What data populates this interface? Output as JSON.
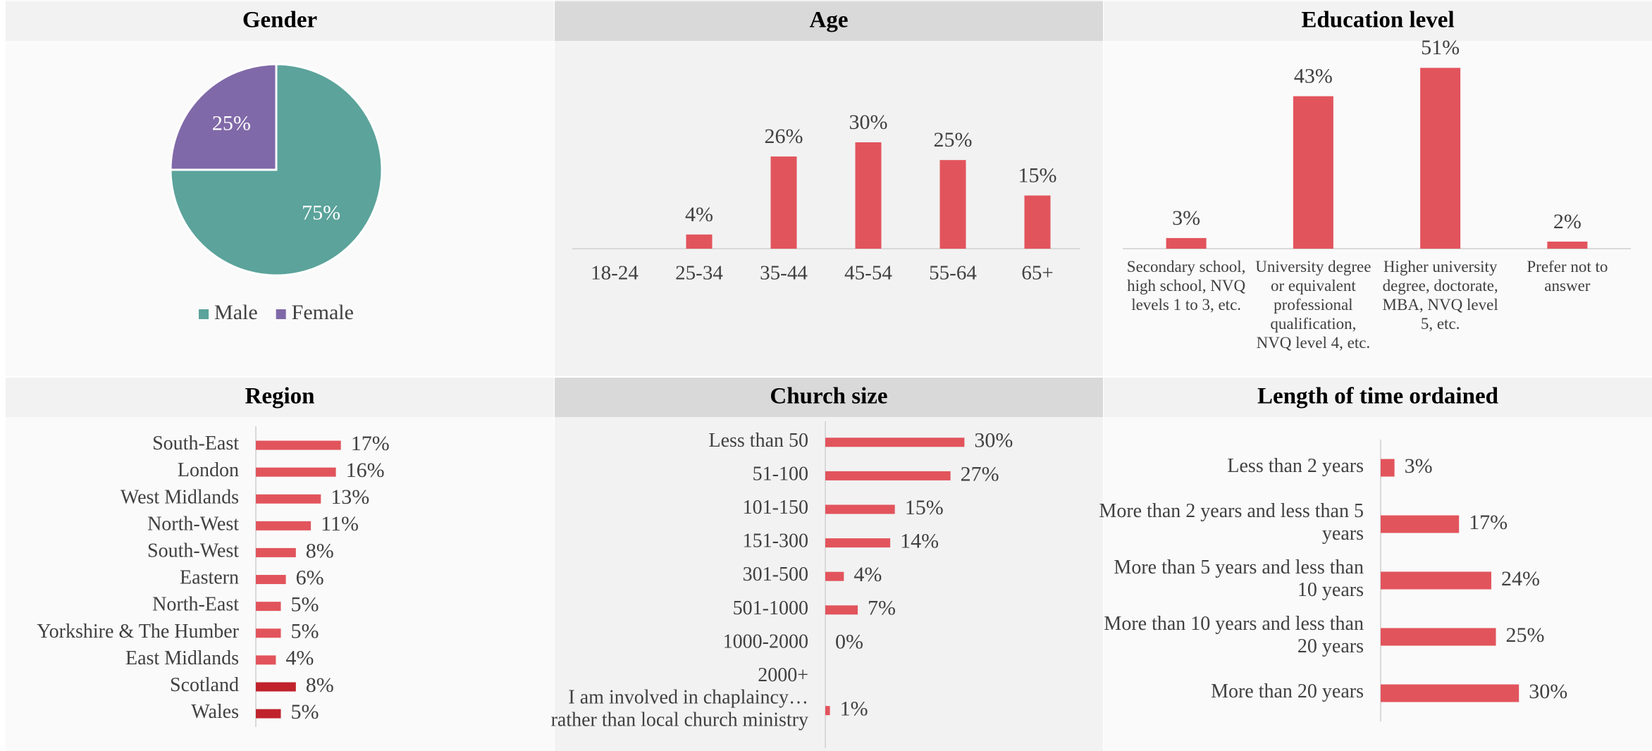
{
  "chart_data": [
    {
      "type": "pie",
      "title": "Gender",
      "categories": [
        "Male",
        "Female"
      ],
      "values": [
        75,
        25
      ],
      "value_labels": [
        "75%",
        "25%"
      ],
      "colors": [
        "#5ba39b",
        "#8069a8"
      ],
      "legend": "bottom"
    },
    {
      "type": "bar",
      "orientation": "vertical",
      "title": "Age",
      "categories": [
        "18-24",
        "25-34",
        "35-44",
        "45-54",
        "55-64",
        "65+"
      ],
      "values": [
        null,
        4,
        26,
        30,
        25,
        15
      ],
      "value_labels": [
        null,
        "4%",
        "26%",
        "30%",
        "25%",
        "15%"
      ],
      "color": "#e2545c",
      "ylim": [
        0,
        60
      ]
    },
    {
      "type": "bar",
      "orientation": "vertical",
      "title": "Education level",
      "categories": [
        "Secondary school, high school, NVQ levels 1 to 3, etc.",
        "University degree or equivalent professional qualification, NVQ level 4, etc.",
        "Higher university degree, doctorate, MBA, NVQ level 5, etc.",
        "Prefer not to answer"
      ],
      "values": [
        3,
        43,
        51,
        2
      ],
      "value_labels": [
        "3%",
        "43%",
        "51%",
        "2%"
      ],
      "color": "#e2545c",
      "ylim": [
        0,
        60
      ]
    },
    {
      "type": "bar",
      "orientation": "horizontal",
      "title": "Region",
      "categories": [
        "South-East",
        "London",
        "West Midlands",
        "North-West",
        "South-West",
        "Eastern",
        "North-East",
        "Yorkshire & The Humber",
        "East Midlands",
        "Scotland",
        "Wales"
      ],
      "values": [
        17,
        16,
        13,
        11,
        8,
        6,
        5,
        5,
        4,
        8,
        5
      ],
      "value_labels": [
        "17%",
        "16%",
        "13%",
        "11%",
        "8%",
        "6%",
        "5%",
        "5%",
        "4%",
        "8%",
        "5%"
      ],
      "colors": [
        "#e2545c",
        "#e2545c",
        "#e2545c",
        "#e2545c",
        "#e2545c",
        "#e2545c",
        "#e2545c",
        "#e2545c",
        "#e2545c",
        "#c0232c",
        "#c0232c"
      ],
      "xlim": [
        0,
        50
      ]
    },
    {
      "type": "bar",
      "orientation": "horizontal",
      "title": "Church size",
      "categories": [
        "Less than 50",
        "51-100",
        "101-150",
        "151-300",
        "301-500",
        "501-1000",
        "1000-2000",
        "2000+",
        "I am involved in chaplaincy… rather than local church ministry"
      ],
      "values": [
        30,
        27,
        15,
        14,
        4,
        7,
        0,
        null,
        1
      ],
      "value_labels": [
        "30%",
        "27%",
        "15%",
        "14%",
        "4%",
        "7%",
        "0%",
        null,
        "1%"
      ],
      "color": "#e2545c",
      "xlim": [
        0,
        50
      ]
    },
    {
      "type": "bar",
      "orientation": "horizontal",
      "title": "Length of time ordained",
      "categories": [
        "Less than 2 years",
        "More than 2 years and less than 5 years",
        "More than 5 years and less than 10 years",
        "More than 10 years and less than 20 years",
        "More than 20 years"
      ],
      "values": [
        3,
        17,
        24,
        25,
        30
      ],
      "value_labels": [
        "3%",
        "17%",
        "24%",
        "25%",
        "30%"
      ],
      "color": "#e2545c",
      "xlim": [
        0,
        50
      ]
    }
  ]
}
